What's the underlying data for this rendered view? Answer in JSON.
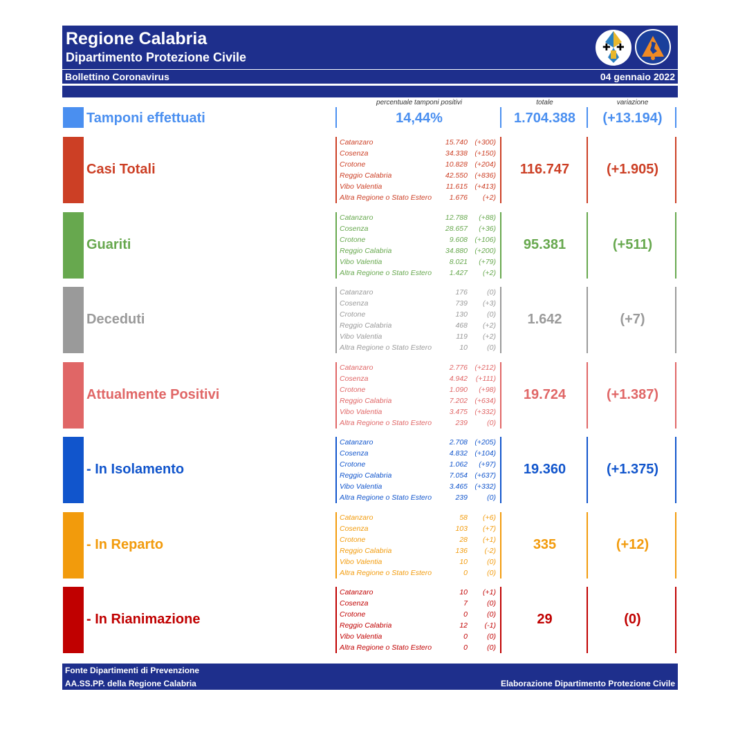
{
  "header": {
    "title": "Regione Calabria",
    "subtitle": "Dipartimento Protezione Civile",
    "bulletin": "Bollettino Coronavirus",
    "date": "04 gennaio 2022"
  },
  "columns": {
    "percent_label": "percentuale tamponi positivi",
    "total_label": "totale",
    "variation_label": "variazione"
  },
  "tamponi": {
    "label": "Tamponi effettuati",
    "percent": "14,44%",
    "total": "1.704.388",
    "variation": "(+13.194)",
    "color": "#4a8ff0"
  },
  "sections": [
    {
      "label": "Casi Totali",
      "color": "#cc3f25",
      "total": "116.747",
      "variation": "(+1.905)",
      "rows": [
        {
          "name": "Catanzaro",
          "value": "15.740",
          "delta": "(+300)"
        },
        {
          "name": "Cosenza",
          "value": "34.338",
          "delta": "(+150)"
        },
        {
          "name": "Crotone",
          "value": "10.828",
          "delta": "(+204)"
        },
        {
          "name": "Reggio Calabria",
          "value": "42.550",
          "delta": "(+836)"
        },
        {
          "name": "Vibo Valentia",
          "value": "11.615",
          "delta": "(+413)"
        },
        {
          "name": "Altra Regione o Stato Estero",
          "value": "1.676",
          "delta": "(+2)"
        }
      ]
    },
    {
      "label": "Guariti",
      "color": "#67a84e",
      "total": "95.381",
      "variation": "(+511)",
      "rows": [
        {
          "name": "Catanzaro",
          "value": "12.788",
          "delta": "(+88)"
        },
        {
          "name": "Cosenza",
          "value": "28.657",
          "delta": "(+36)"
        },
        {
          "name": "Crotone",
          "value": "9.608",
          "delta": "(+106)"
        },
        {
          "name": "Reggio Calabria",
          "value": "34.880",
          "delta": "(+200)"
        },
        {
          "name": "Vibo Valentia",
          "value": "8.021",
          "delta": "(+79)"
        },
        {
          "name": "Altra Regione o Stato Estero",
          "value": "1.427",
          "delta": "(+2)"
        }
      ]
    },
    {
      "label": "Deceduti",
      "color": "#9a9a9a",
      "total": "1.642",
      "variation": "(+7)",
      "rows": [
        {
          "name": "Catanzaro",
          "value": "176",
          "delta": "(0)"
        },
        {
          "name": "Cosenza",
          "value": "739",
          "delta": "(+3)"
        },
        {
          "name": "Crotone",
          "value": "130",
          "delta": "(0)"
        },
        {
          "name": "Reggio Calabria",
          "value": "468",
          "delta": "(+2)"
        },
        {
          "name": "Vibo Valentia",
          "value": "119",
          "delta": "(+2)"
        },
        {
          "name": "Altra Regione o Stato Estero",
          "value": "10",
          "delta": "(0)"
        }
      ]
    },
    {
      "label": "Attualmente Positivi",
      "color": "#e06666",
      "total": "19.724",
      "variation": "(+1.387)",
      "rows": [
        {
          "name": "Catanzaro",
          "value": "2.776",
          "delta": "(+212)"
        },
        {
          "name": "Cosenza",
          "value": "4.942",
          "delta": "(+111)"
        },
        {
          "name": "Crotone",
          "value": "1.090",
          "delta": "(+98)"
        },
        {
          "name": "Reggio Calabria",
          "value": "7.202",
          "delta": "(+634)"
        },
        {
          "name": "Vibo Valentia",
          "value": "3.475",
          "delta": "(+332)"
        },
        {
          "name": "Altra Regione o Stato Estero",
          "value": "239",
          "delta": "(0)"
        }
      ]
    },
    {
      "label": " - In Isolamento",
      "color": "#1155cc",
      "total": "19.360",
      "variation": "(+1.375)",
      "rows": [
        {
          "name": "Catanzaro",
          "value": "2.708",
          "delta": "(+205)"
        },
        {
          "name": "Cosenza",
          "value": "4.832",
          "delta": "(+104)"
        },
        {
          "name": "Crotone",
          "value": "1.062",
          "delta": "(+97)"
        },
        {
          "name": "Reggio Calabria",
          "value": "7.054",
          "delta": "(+637)"
        },
        {
          "name": "Vibo Valentia",
          "value": "3.465",
          "delta": "(+332)"
        },
        {
          "name": "Altra Regione o Stato Estero",
          "value": "239",
          "delta": "(0)"
        }
      ]
    },
    {
      "label": " - In Reparto",
      "color": "#f29b0c",
      "total": "335",
      "variation": "(+12)",
      "rows": [
        {
          "name": "Catanzaro",
          "value": "58",
          "delta": "(+6)"
        },
        {
          "name": "Cosenza",
          "value": "103",
          "delta": "(+7)"
        },
        {
          "name": "Crotone",
          "value": "28",
          "delta": "(+1)"
        },
        {
          "name": "Reggio Calabria",
          "value": "136",
          "delta": "(-2)"
        },
        {
          "name": "Vibo Valentia",
          "value": "10",
          "delta": "(0)"
        },
        {
          "name": "Altra Regione o Stato Estero",
          "value": "0",
          "delta": "(0)"
        }
      ]
    },
    {
      "label": " - In Rianimazione",
      "color": "#c00000",
      "total": "29",
      "variation": "(0)",
      "rows": [
        {
          "name": "Catanzaro",
          "value": "10",
          "delta": "(+1)"
        },
        {
          "name": "Cosenza",
          "value": "7",
          "delta": "(0)"
        },
        {
          "name": "Crotone",
          "value": "0",
          "delta": "(0)"
        },
        {
          "name": "Reggio Calabria",
          "value": "12",
          "delta": "(-1)"
        },
        {
          "name": "Vibo Valentia",
          "value": "0",
          "delta": "(0)"
        },
        {
          "name": "Altra Regione o Stato Estero",
          "value": "0",
          "delta": "(0)"
        }
      ]
    }
  ],
  "footer": {
    "line1": "Fonte Dipartimenti di Prevenzione",
    "line2": "AA.SS.PP.  della Regione Calabria",
    "credit": "Elaborazione Dipartimento Protezione Civile"
  }
}
